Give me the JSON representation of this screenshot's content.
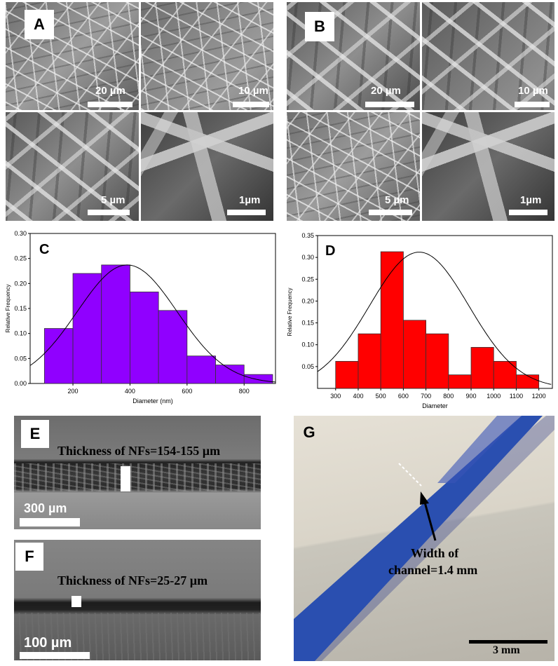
{
  "panels": {
    "A": {
      "letter": "A",
      "scale_labels": [
        "20 µm",
        "10 µm",
        "5 µm",
        "1µm"
      ]
    },
    "B": {
      "letter": "B",
      "scale_labels": [
        "20 µm",
        "10 µm",
        "5 µm",
        "1µm"
      ]
    },
    "E": {
      "letter": "E",
      "thickness_label": "Thickness of NFs=154-155 µm",
      "scale_label": "300 µm"
    },
    "F": {
      "letter": "F",
      "thickness_label": "Thickness of NFs=25-27 µm",
      "scale_label": "100 µm"
    },
    "G": {
      "letter": "G",
      "annotation_line1": "Width of",
      "annotation_line2": "channel=1.4 mm",
      "scale_label": "3 mm"
    }
  },
  "chart_data": [
    {
      "id": "C",
      "letter": "C",
      "type": "bar",
      "xlabel": "Diameter (nm)",
      "ylabel": "Relative Frequency",
      "bar_color": "#9000ff",
      "xlim": [
        50,
        910
      ],
      "ylim": [
        0,
        0.3
      ],
      "xticks": [
        200,
        400,
        600,
        800
      ],
      "yticks": [
        0.0,
        0.05,
        0.1,
        0.15,
        0.2,
        0.25,
        0.3
      ],
      "bin_edges": [
        100,
        200,
        300,
        400,
        500,
        600,
        700,
        800,
        900
      ],
      "values": [
        0.11,
        0.22,
        0.237,
        0.183,
        0.146,
        0.055,
        0.037,
        0.018
      ],
      "fit_curve": {
        "type": "normal",
        "mean": 390,
        "sd": 175,
        "peak": 0.237
      }
    },
    {
      "id": "D",
      "letter": "D",
      "type": "bar",
      "xlabel": "Diameter",
      "ylabel": "Relative Frequency",
      "bar_color": "#ff0000",
      "xlim": [
        220,
        1260
      ],
      "ylim": [
        0,
        0.35
      ],
      "xticks": [
        300,
        400,
        500,
        600,
        700,
        800,
        900,
        1000,
        1100,
        1200
      ],
      "yticks": [
        0.05,
        0.1,
        0.15,
        0.2,
        0.25,
        0.3,
        0.35
      ],
      "bin_edges": [
        300,
        400,
        500,
        600,
        700,
        800,
        900,
        1000,
        1100,
        1200
      ],
      "values": [
        0.062,
        0.125,
        0.313,
        0.156,
        0.125,
        0.031,
        0.094,
        0.062,
        0.031
      ],
      "fit_curve": {
        "type": "normal",
        "mean": 670,
        "sd": 220,
        "peak": 0.312
      }
    }
  ]
}
